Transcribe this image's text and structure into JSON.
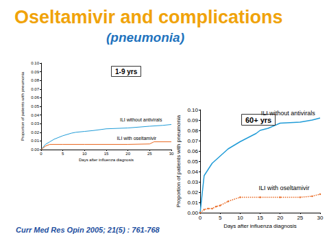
{
  "slide": {
    "title": "Oseltamivir and complications",
    "subtitle": "(pneumonia)",
    "source": "Curr Med Res Opin 2005; 21(5) : 761-768"
  },
  "chart_data": [
    {
      "type": "line",
      "title": "1-9 yrs",
      "x_label": "Days after influenza diagnosis",
      "y_label": "Proportion of patients with pneumonia",
      "xlim": [
        0,
        30
      ],
      "xticks": [
        0,
        5,
        10,
        15,
        20,
        25,
        30
      ],
      "ylim": [
        0,
        0.1
      ],
      "yticks": [
        {
          "value": 0,
          "label": "0.00"
        },
        {
          "value": 0.01,
          "label": "0.01"
        },
        {
          "value": 0.02,
          "label": "0.02"
        },
        {
          "value": 0.03,
          "label": "0.03"
        },
        {
          "value": 0.04,
          "label": "0.04"
        },
        {
          "value": 0.05,
          "label": "0.05"
        },
        {
          "value": 0.06,
          "label": "0.06"
        },
        {
          "value": 0.07,
          "label": "0.07"
        },
        {
          "value": 0.08,
          "label": "0.08"
        },
        {
          "value": 0.09,
          "label": "0.09"
        },
        {
          "value": 0.1,
          "label": "0.10"
        }
      ],
      "grid": false,
      "series": [
        {
          "name": "ILI without antivirals",
          "color": "#1f9bd7",
          "line_style": "solid",
          "marker": "none",
          "label_at": [
            23,
            0.032
          ],
          "x": [
            0,
            1,
            2,
            3,
            5,
            7,
            8,
            10,
            12,
            15,
            20,
            25,
            28,
            30
          ],
          "values": [
            0,
            0.006,
            0.009,
            0.012,
            0.016,
            0.019,
            0.02,
            0.021,
            0.022,
            0.024,
            0.025,
            0.027,
            0.028,
            0.029
          ]
        },
        {
          "name": "ILI with oseltamivir",
          "color": "#e8641b",
          "line_style": "solid",
          "marker": "none",
          "label_at": [
            22,
            0.01
          ],
          "x": [
            0,
            1,
            2,
            5,
            10,
            15,
            20,
            25,
            26,
            30
          ],
          "values": [
            0,
            0.004,
            0.006,
            0.006,
            0.006,
            0.006,
            0.006,
            0.0065,
            0.009,
            0.009
          ]
        }
      ]
    },
    {
      "type": "line",
      "title": "60+ yrs",
      "x_label": "Days after influenza diagnosis",
      "y_label": "Proportion of patients with pneumonia",
      "xlim": [
        0,
        30
      ],
      "xticks": [
        0,
        5,
        10,
        15,
        20,
        25,
        30
      ],
      "ylim": [
        0,
        0.1
      ],
      "yticks": [
        {
          "value": 0,
          "label": "0.00"
        },
        {
          "value": 0.01,
          "label": "0.01"
        },
        {
          "value": 0.02,
          "label": "0.02"
        },
        {
          "value": 0.03,
          "label": "0.03"
        },
        {
          "value": 0.04,
          "label": "0.04"
        },
        {
          "value": 0.05,
          "label": "0.05"
        },
        {
          "value": 0.06,
          "label": "0.06"
        },
        {
          "value": 0.07,
          "label": "0.07"
        },
        {
          "value": 0.08,
          "label": "0.08"
        },
        {
          "value": 0.09,
          "label": "0.09"
        },
        {
          "value": 0.1,
          "label": "0.10"
        }
      ],
      "grid": false,
      "series": [
        {
          "name": "ILI without antivirals",
          "color": "#1f9bd7",
          "line_style": "solid",
          "marker": "none",
          "label_at": [
            22,
            0.094
          ],
          "x": [
            0,
            1,
            2,
            3,
            5,
            7,
            10,
            12,
            14,
            15,
            17,
            20,
            25,
            28,
            30
          ],
          "values": [
            0,
            0.036,
            0.042,
            0.048,
            0.055,
            0.062,
            0.069,
            0.073,
            0.077,
            0.08,
            0.082,
            0.087,
            0.088,
            0.09,
            0.092
          ]
        },
        {
          "name": "ILI with oseltamivir",
          "color": "#e8641b",
          "line_style": "dotted",
          "marker": "circle",
          "label_at": [
            21,
            0.021
          ],
          "x": [
            0,
            1,
            2,
            3,
            4,
            5,
            7,
            10,
            15,
            20,
            25,
            28,
            30
          ],
          "values": [
            0,
            0.003,
            0.004,
            0.004,
            0.006,
            0.007,
            0.011,
            0.015,
            0.015,
            0.015,
            0.015,
            0.016,
            0.018
          ]
        }
      ]
    }
  ]
}
